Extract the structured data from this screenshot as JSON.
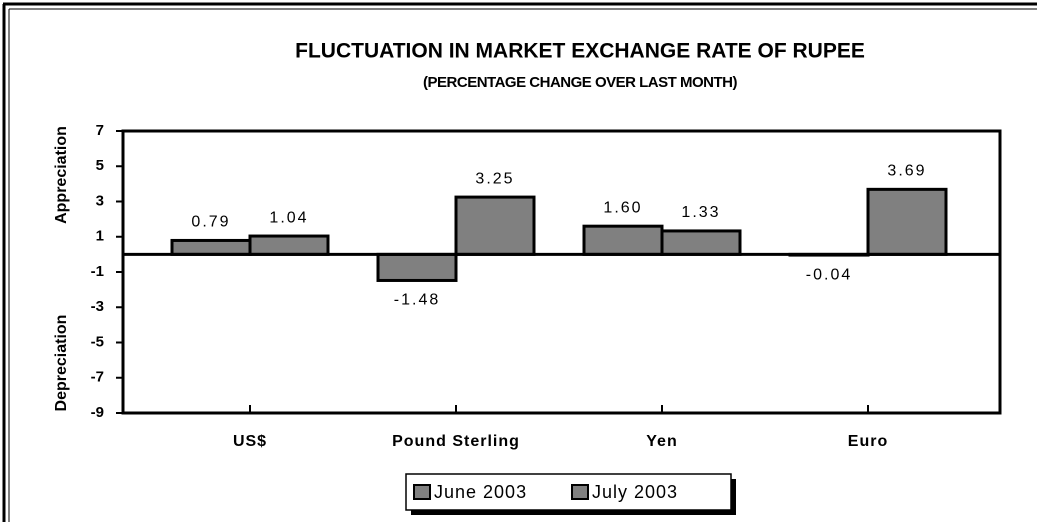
{
  "chart_data": {
    "type": "bar",
    "title": "FLUCTUATION IN MARKET EXCHANGE RATE OF RUPEE",
    "subtitle": "(PERCENTAGE CHANGE OVER LAST MONTH)",
    "y_label_top": "Appreciation",
    "y_label_bottom": "Depreciation",
    "categories": [
      "US$",
      "Pound Sterling",
      "Yen",
      "Euro"
    ],
    "series": [
      {
        "name": "June 2003",
        "color": "#808080",
        "values": [
          0.79,
          -1.48,
          1.6,
          -0.04
        ],
        "value_labels": [
          "0.79",
          "-1.48",
          "1.60",
          "-0.04"
        ]
      },
      {
        "name": "July 2003",
        "color": "#808080",
        "values": [
          1.04,
          3.25,
          1.33,
          3.69
        ],
        "value_labels": [
          "1.04",
          "3.25",
          "1.33",
          "3.69"
        ]
      }
    ],
    "ylim": [
      -9,
      7
    ],
    "yticks": [
      7,
      5,
      3,
      1,
      -1,
      -3,
      -5,
      -7,
      -9
    ],
    "legend": "bottom"
  }
}
